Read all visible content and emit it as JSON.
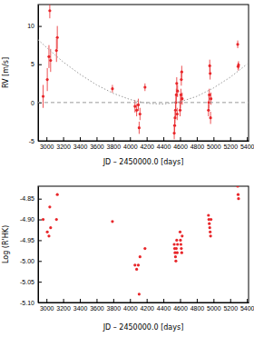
{
  "chart_data": [
    {
      "type": "scatter",
      "x_label": "JD – 2450000.0 [days]",
      "y_label": "RV [m/s]",
      "xlim": [
        2900,
        5420
      ],
      "ylim": [
        -5,
        12.8
      ],
      "xticks": [
        3000,
        3200,
        3400,
        3600,
        3800,
        4000,
        4200,
        4400,
        4600,
        4800,
        5000,
        5200,
        5400
      ],
      "yticks": [
        -5,
        0,
        5,
        10
      ],
      "series": [
        {
          "type": "scatter",
          "color": "#e8262a",
          "marker": "circle",
          "x": [
            2960,
            3010,
            3030,
            3040,
            3050,
            3120,
            3130,
            3790,
            4060,
            4080,
            4100,
            4110,
            4120,
            4180,
            4530,
            4535,
            4540,
            4545,
            4550,
            4555,
            4560,
            4565,
            4570,
            4600,
            4605,
            4610,
            4615,
            4620,
            4625,
            4940,
            4945,
            4950,
            4955,
            4960,
            4965,
            4970,
            5290,
            5295,
            5300
          ],
          "values": [
            0.8,
            3.0,
            6.0,
            12.0,
            5.5,
            6.8,
            8.5,
            1.8,
            -0.5,
            -1.0,
            -0.3,
            -3.3,
            -1.5,
            2.0,
            -4.0,
            -3.0,
            -2.0,
            -1.0,
            0.0,
            1.0,
            2.5,
            -1.5,
            1.5,
            -1.0,
            0.0,
            1.0,
            3.0,
            4.0,
            0.5,
            -1.0,
            0.0,
            1.0,
            4.8,
            3.8,
            -2.0,
            0.5,
            7.6,
            4.7,
            4.9
          ],
          "errors": [
            1.5,
            1.5,
            1.5,
            1.0,
            1.5,
            1.5,
            1.5,
            0.5,
            0.8,
            0.8,
            0.8,
            0.8,
            0.8,
            0.5,
            0.8,
            0.8,
            0.8,
            0.8,
            0.8,
            0.8,
            0.8,
            0.8,
            0.8,
            0.8,
            0.8,
            0.8,
            0.8,
            0.8,
            0.8,
            0.8,
            0.8,
            0.8,
            0.8,
            0.8,
            0.8,
            0.8,
            0.5,
            0.5,
            0.5
          ]
        },
        {
          "type": "line",
          "color": "#999999",
          "line_style": "dotted",
          "x": [
            2900,
            3000,
            3200,
            3400,
            3600,
            3800,
            4000,
            4200,
            4400,
            4600,
            4800,
            5000,
            5200,
            5400
          ],
          "values": [
            8.2,
            7.2,
            5.3,
            3.7,
            2.3,
            1.2,
            0.4,
            -0.1,
            -0.2,
            0.1,
            0.8,
            1.9,
            3.3,
            5.0
          ]
        },
        {
          "type": "line",
          "color": "#999999",
          "line_style": "dashed",
          "x": [
            2900,
            5420
          ],
          "values": [
            0,
            0
          ]
        }
      ]
    },
    {
      "type": "scatter",
      "x_label": "JD – 2450000.0 [days]",
      "y_label": "Log (R'HK)",
      "xlim": [
        2900,
        5420
      ],
      "ylim": [
        -5.1,
        -4.82
      ],
      "xticks": [
        3000,
        3200,
        3400,
        3600,
        3800,
        4000,
        4200,
        4400,
        4600,
        4800,
        5000,
        5200,
        5400
      ],
      "yticks": [
        -4.85,
        {
          "value": -4.9,
          "label": "-4.90"
        },
        -4.95,
        {
          "value": -5,
          "label": "-5.00"
        },
        -5.05,
        {
          "value": -5.1,
          "label": "-5.10"
        }
      ],
      "series": [
        {
          "type": "scatter",
          "color": "#e8262a",
          "marker": "circle",
          "x": [
            2960,
            3010,
            3030,
            3040,
            3050,
            3120,
            3130,
            3790,
            4060,
            4080,
            4100,
            4110,
            4120,
            4180,
            4530,
            4535,
            4540,
            4545,
            4550,
            4555,
            4560,
            4565,
            4570,
            4600,
            4605,
            4610,
            4615,
            4620,
            4625,
            4940,
            4945,
            4950,
            4955,
            4960,
            4965,
            4970,
            5290,
            5295,
            5300
          ],
          "values": [
            -4.9,
            -4.93,
            -4.94,
            -4.87,
            -4.92,
            -4.9,
            -4.84,
            -4.905,
            -5.01,
            -5.02,
            -5.01,
            -5.08,
            -4.99,
            -4.97,
            -4.96,
            -4.97,
            -4.98,
            -4.99,
            -5.0,
            -4.97,
            -4.95,
            -4.98,
            -4.96,
            -4.93,
            -4.95,
            -4.96,
            -4.97,
            -4.98,
            -4.94,
            -4.89,
            -4.9,
            -4.91,
            -4.92,
            -4.93,
            -4.94,
            -4.9,
            -4.82,
            -4.84,
            -4.85
          ]
        }
      ]
    }
  ]
}
